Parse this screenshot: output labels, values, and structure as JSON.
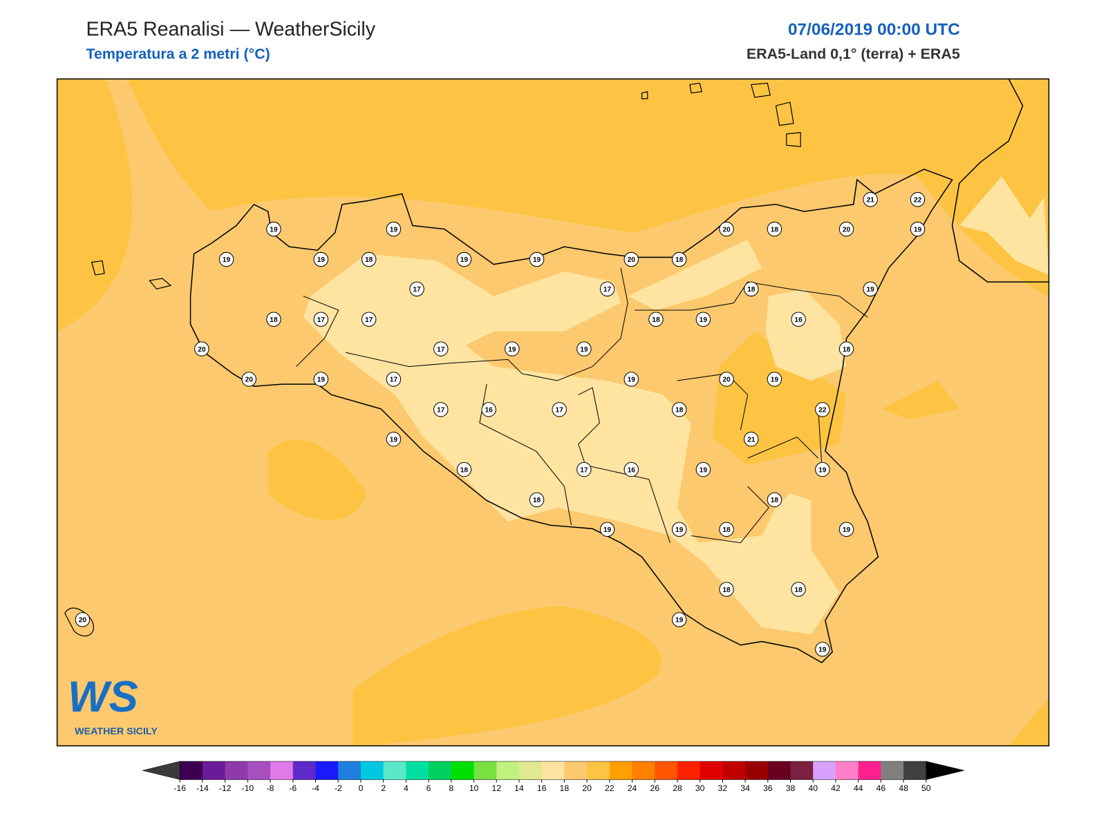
{
  "header": {
    "title": "ERA5 Reanalisi — WeatherSicily",
    "subtitle": "Temperatura a 2 metri (°C)",
    "datetime": "07/06/2019 00:00 UTC",
    "source": "ERA5-Land 0,1° (terra) + ERA5"
  },
  "stations": {
    "values": [
      19,
      19,
      19,
      19,
      18,
      19,
      19,
      20,
      18,
      20,
      18,
      20,
      19,
      21,
      22,
      17,
      17,
      18,
      19,
      18,
      17,
      17,
      18,
      19,
      16,
      20,
      17,
      19,
      19,
      18,
      20,
      19,
      17,
      19,
      20,
      19,
      17,
      16,
      17,
      18,
      22,
      19,
      21,
      18,
      17,
      16,
      19,
      19,
      18,
      18,
      19,
      19,
      18,
      19,
      18,
      18,
      19,
      19,
      20
    ]
  },
  "colorbar": {
    "ticks": [
      -16,
      -14,
      -12,
      -10,
      -8,
      -6,
      -4,
      -2,
      0,
      2,
      4,
      6,
      8,
      10,
      12,
      14,
      16,
      18,
      20,
      22,
      24,
      26,
      28,
      30,
      32,
      34,
      36,
      38,
      40,
      42,
      44,
      46,
      48,
      50
    ],
    "colors": [
      "#3d0051",
      "#6a1b9a",
      "#8e3aa8",
      "#a64fbf",
      "#e07ae8",
      "#5e2bc8",
      "#1a1aff",
      "#1f7fe0",
      "#00c8e0",
      "#5ae8c8",
      "#00e0a0",
      "#00d060",
      "#00e000",
      "#78e040",
      "#c0f080",
      "#e0e890",
      "#fee4a0",
      "#fdc96e",
      "#fdc443",
      "#ffa000",
      "#ff8000",
      "#ff5500",
      "#ff2000",
      "#e00000",
      "#c00000",
      "#9a0000",
      "#6a0020",
      "#7a2040",
      "#d8a0ff",
      "#ff80c8",
      "#ff2090",
      "#808080",
      "#404040"
    ],
    "under_color": "#3a3a3a",
    "over_color": "#000000"
  },
  "logo": {
    "mark": "WS",
    "text": "WEATHER SICILY"
  }
}
